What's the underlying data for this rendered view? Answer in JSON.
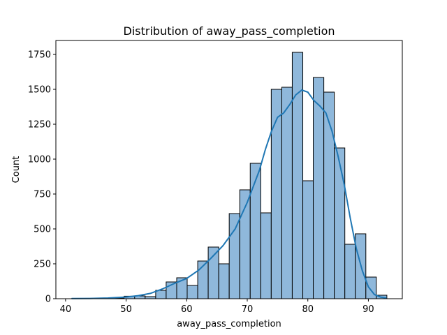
{
  "chart_data": {
    "type": "bar",
    "title": "Distribution of away_pass_completion",
    "xlabel": "away_pass_completion",
    "ylabel": "Count",
    "xlim": [
      38.4,
      95.6
    ],
    "ylim": [
      0,
      1850
    ],
    "xticks": [
      40,
      50,
      60,
      70,
      80,
      90
    ],
    "yticks": [
      0,
      250,
      500,
      750,
      1000,
      1250,
      1500,
      1750
    ],
    "bin_edges": [
      41.0,
      42.73,
      44.47,
      46.2,
      47.94,
      49.67,
      51.41,
      53.14,
      54.88,
      56.61,
      58.35,
      60.08,
      61.82,
      63.55,
      65.29,
      67.02,
      68.76,
      70.49,
      72.23,
      73.96,
      75.7,
      77.43,
      79.17,
      80.9,
      82.64,
      84.37,
      86.11,
      87.84,
      89.58,
      91.31,
      93.05
    ],
    "counts": [
      1,
      0,
      0,
      2,
      5,
      18,
      20,
      15,
      60,
      120,
      150,
      95,
      270,
      370,
      250,
      610,
      780,
      970,
      615,
      1500,
      1515,
      1765,
      845,
      1585,
      1480,
      1080,
      390,
      465,
      155,
      25
    ],
    "kde": {
      "x": [
        41,
        44,
        47,
        50,
        52,
        54,
        56,
        58,
        60,
        62,
        64,
        66,
        68,
        70,
        72,
        73,
        74,
        75,
        76,
        77,
        78,
        79,
        80,
        81,
        82,
        83,
        84,
        85,
        86,
        87,
        88,
        89,
        90,
        91,
        92,
        93
      ],
      "y": [
        1,
        2,
        5,
        12,
        22,
        38,
        70,
        110,
        145,
        205,
        290,
        380,
        500,
        690,
        920,
        1070,
        1200,
        1300,
        1330,
        1390,
        1460,
        1495,
        1480,
        1420,
        1380,
        1330,
        1200,
        1020,
        820,
        580,
        360,
        200,
        85,
        30,
        12,
        5
      ]
    },
    "colors": {
      "bar_fill": "#8fb8db",
      "bar_edge": "#000000",
      "kde_line": "#1f77b4"
    },
    "grid": false,
    "legend": "none"
  }
}
